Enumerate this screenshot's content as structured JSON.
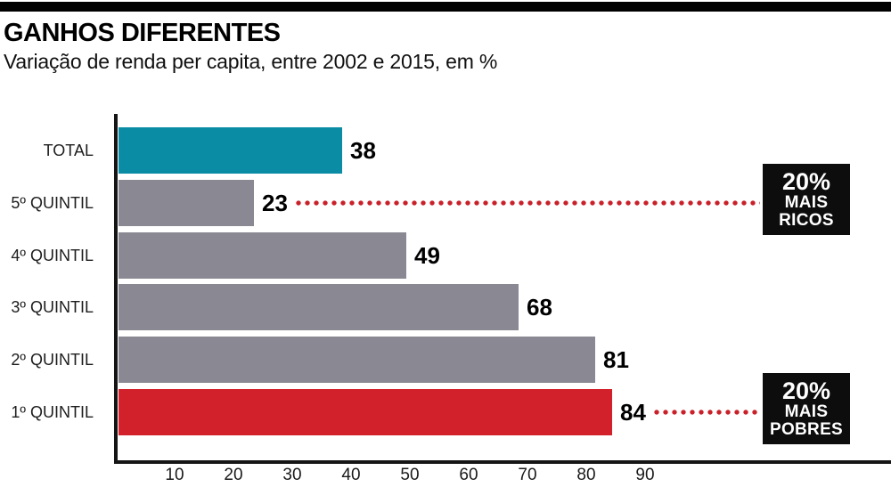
{
  "chart_data": {
    "type": "bar",
    "orientation": "horizontal",
    "title": "GANHOS DIFERENTES",
    "subtitle": "Variação de renda per capita, entre 2002 e 2015, em %",
    "categories": [
      "TOTAL",
      "5º QUINTIL",
      "4º QUINTIL",
      "3º QUINTIL",
      "2º QUINTIL",
      "1º QUINTIL"
    ],
    "values": [
      38,
      23,
      49,
      68,
      81,
      84
    ],
    "value_labels": [
      "38",
      "23",
      "49",
      "68",
      "81",
      "84"
    ],
    "bar_colors": [
      "#0a8ca4",
      "#8a8892",
      "#8a8892",
      "#8a8892",
      "#8a8892",
      "#d2212a"
    ],
    "x_ticks": [
      "10",
      "20",
      "30",
      "40",
      "50",
      "60",
      "70",
      "80",
      "90"
    ],
    "xlim": [
      0,
      95
    ],
    "grid": false,
    "legend": null,
    "annotations": [
      {
        "row_index": 1,
        "text_lines": [
          "20%",
          "MAIS",
          "RICOS"
        ],
        "box_color": "#0d0d0d",
        "text_color": "#ffffff"
      },
      {
        "row_index": 5,
        "text_lines": [
          "20%",
          "MAIS",
          "POBRES"
        ],
        "box_color": "#0d0d0d",
        "text_color": "#ffffff"
      }
    ],
    "connector_color": "#c92029",
    "axis_color": "#151515",
    "top_rule_color": "#000000"
  }
}
